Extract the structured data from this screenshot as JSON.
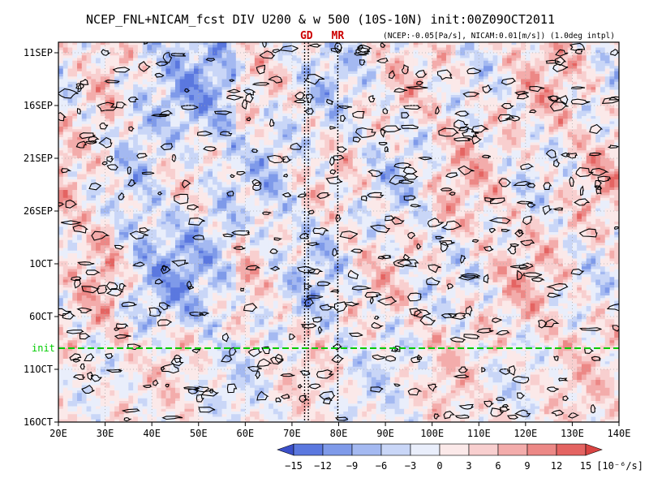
{
  "chart_data": {
    "type": "heatmap",
    "title": "NCEP_FNL+NICAM_fcst DIV U200 & w 500 (10S-10N) init:00Z09OCT2011",
    "subtitle": "(NCEP:-0.05[Pa/s], NICAM:0.01[m/s]) (1.0deg intpl)",
    "x_ticks": [
      "20E",
      "30E",
      "40E",
      "50E",
      "60E",
      "70E",
      "80E",
      "90E",
      "100E",
      "110E",
      "120E",
      "130E",
      "140E"
    ],
    "x_tick_values": [
      20,
      30,
      40,
      50,
      60,
      70,
      80,
      90,
      100,
      110,
      120,
      130,
      140
    ],
    "xlim": [
      20,
      140
    ],
    "y_ticks": [
      "11SEP",
      "16SEP",
      "21SEP",
      "26SEP",
      "1OCT",
      "6OCT",
      "11OCT",
      "16OCT"
    ],
    "y_tick_days": [
      0,
      5,
      10,
      15,
      20,
      25,
      30,
      35
    ],
    "ylim_days": [
      -1,
      35
    ],
    "init_label": "init",
    "init_day": 28,
    "markers": [
      {
        "label": "GD",
        "lons": [
          72.7,
          73.5
        ],
        "color": "#cc0000"
      },
      {
        "label": "MR",
        "lons": [
          79.8
        ],
        "color": "#cc0000"
      }
    ],
    "colorbar": {
      "levels": [
        -15,
        -12,
        -9,
        -6,
        -3,
        0,
        3,
        6,
        9,
        12,
        15
      ],
      "tick_labels": [
        "-15",
        "-12",
        "-9",
        "-6",
        "-3",
        "0",
        "3",
        "6",
        "9",
        "12",
        "15"
      ],
      "unit": "[10⁻⁶/s]",
      "colors": [
        "#3b4fc9",
        "#5b78df",
        "#7f9ae9",
        "#a4b9f1",
        "#c9d6f7",
        "#e9eefb",
        "#fbe9e9",
        "#f8cfcf",
        "#f3acab",
        "#ec8886",
        "#e46462",
        "#d94442"
      ]
    },
    "colors": {
      "contour": "#000000",
      "init_line": "#00cc00",
      "grid": "#aaaaaa",
      "marker_line": "#000000"
    }
  }
}
